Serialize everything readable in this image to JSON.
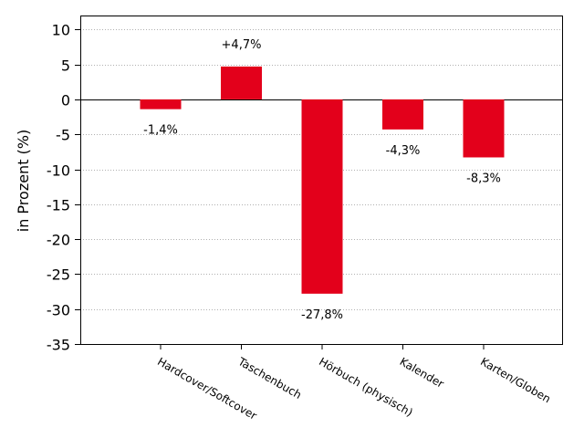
{
  "chart_data": {
    "type": "bar",
    "categories": [
      "Hardcover/Softcover",
      "Taschenbuch",
      "Hörbuch (physisch)",
      "Kalender",
      "Karten/Globen"
    ],
    "values": [
      -1.4,
      4.7,
      -27.8,
      -4.3,
      -8.3
    ],
    "data_labels": [
      "-1,4%",
      "+4,7%",
      "-27,8%",
      "-4,3%",
      "-8,3%"
    ],
    "ylabel": "in Prozent (%)",
    "ylim": [
      -35,
      12
    ],
    "yticks": [
      10,
      5,
      0,
      -5,
      -10,
      -15,
      -20,
      -25,
      -30,
      -35
    ],
    "ytick_labels": [
      "10",
      "5",
      "0",
      "-5",
      "-10",
      "-15",
      "-20",
      "-25",
      "-30",
      "-35"
    ],
    "grid": true,
    "bar_color": "#e3001b"
  }
}
